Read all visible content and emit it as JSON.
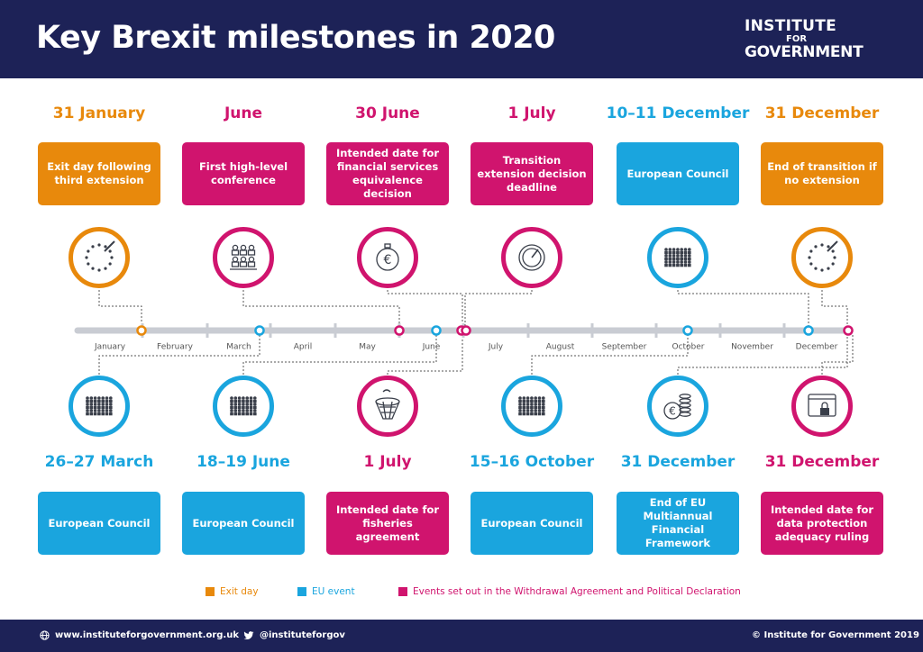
{
  "header": {
    "title": "Key Brexit milestones in 2020",
    "logo_line1": "INSTITUTE",
    "logo_line2": "FOR",
    "logo_line3": "GOVERNMENT"
  },
  "colors": {
    "navy": "#1d2257",
    "exit_day": "#e8890c",
    "eu_event": "#1aa5de",
    "withdrawal": "#d0146e",
    "timeline": "#c9ccd3"
  },
  "timeline": {
    "months": [
      "January",
      "February",
      "March",
      "April",
      "May",
      "June",
      "July",
      "August",
      "September",
      "October",
      "November",
      "December"
    ]
  },
  "top_events": [
    {
      "date": "31 January",
      "text": "Exit day following third extension",
      "category": "exit_day",
      "icon": "eu-stars-pen-icon"
    },
    {
      "date": "June",
      "text": "First high-level conference",
      "category": "withdrawal",
      "icon": "conference-people-icon"
    },
    {
      "date": "30 June",
      "text": "Intended date for financial services equivalence decision",
      "category": "withdrawal",
      "icon": "stopwatch-euro-icon"
    },
    {
      "date": "1 July",
      "text": "Transition extension decision deadline",
      "category": "withdrawal",
      "icon": "gauge-icon"
    },
    {
      "date": "10–11 December",
      "text": "European Council",
      "category": "eu_event",
      "icon": "council-crowd-icon"
    },
    {
      "date": "31 December",
      "text": "End of transition if no extension",
      "category": "exit_day",
      "icon": "eu-stars-pen-icon"
    }
  ],
  "bottom_events": [
    {
      "date": "26–27 March",
      "text": "European Council",
      "category": "eu_event",
      "icon": "council-crowd-icon"
    },
    {
      "date": "18–19 June",
      "text": "European Council",
      "category": "eu_event",
      "icon": "council-crowd-icon"
    },
    {
      "date": "1 July",
      "text": "Intended date for fisheries agreement",
      "category": "withdrawal",
      "icon": "fishing-net-icon"
    },
    {
      "date": "15–16 October",
      "text": "European Council",
      "category": "eu_event",
      "icon": "council-crowd-icon"
    },
    {
      "date": "31 December",
      "text": "End of EU Multiannual Financial Framework",
      "category": "eu_event",
      "icon": "euro-coins-icon"
    },
    {
      "date": "31 December",
      "text": "Intended date for data protection adequacy ruling",
      "category": "withdrawal",
      "icon": "data-lock-icon"
    }
  ],
  "legend": [
    {
      "label": "Exit day",
      "category": "exit_day"
    },
    {
      "label": "EU event",
      "category": "eu_event"
    },
    {
      "label": "Events set out in the Withdrawal Agreement and Political Declaration",
      "category": "withdrawal"
    }
  ],
  "footer": {
    "website": "www.instituteforgovernment.org.uk",
    "twitter": "@instituteforgov",
    "copyright": "© Institute for Government 2019"
  }
}
